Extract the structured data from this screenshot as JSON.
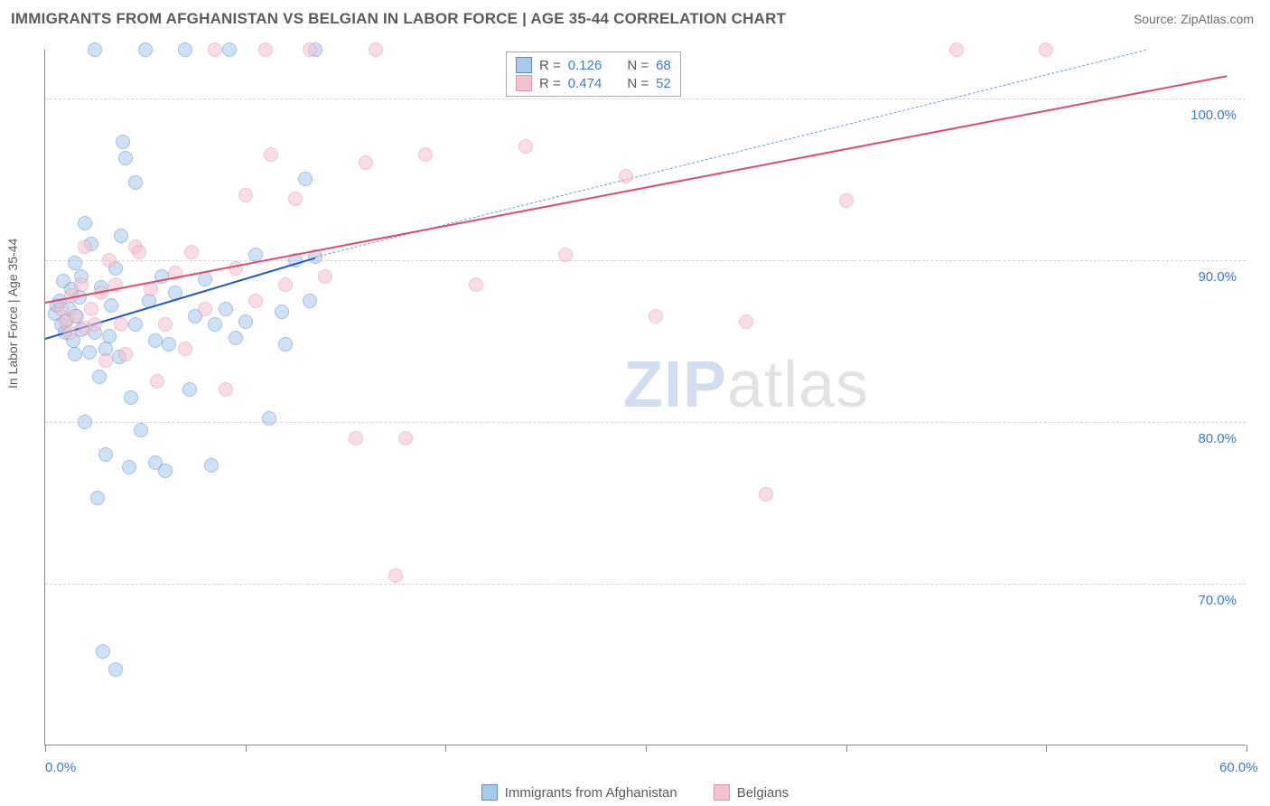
{
  "header": {
    "title": "IMMIGRANTS FROM AFGHANISTAN VS BELGIAN IN LABOR FORCE | AGE 35-44 CORRELATION CHART",
    "source": "Source: ZipAtlas.com"
  },
  "chart": {
    "type": "scatter",
    "ylabel": "In Labor Force | Age 35-44",
    "xlim": [
      0,
      60
    ],
    "ylim": [
      60,
      103
    ],
    "xticks": [
      0,
      10,
      20,
      30,
      40,
      50,
      60
    ],
    "xtick_labels": {
      "0": "0.0%",
      "60": "60.0%"
    },
    "yticks": [
      70,
      80,
      90,
      100
    ],
    "ytick_labels": {
      "70": "70.0%",
      "80": "80.0%",
      "90": "90.0%",
      "100": "100.0%"
    },
    "background_color": "#ffffff",
    "grid_color": "#d5d5d5",
    "axis_color": "#888888",
    "tick_label_color": "#3a7bd5",
    "label_color": "#5a5a5a",
    "marker_radius": 8,
    "marker_opacity": 0.55,
    "series": [
      {
        "id": "afghan",
        "label": "Immigrants from Afghanistan",
        "fill_color": "#a9c9ec",
        "stroke_color": "#5a8fc7",
        "trend_solid_color": "#2457c5",
        "trend_dash_color": "#6a9be0",
        "R": "0.126",
        "N": "68",
        "trend_solid": {
          "x1": 0,
          "y1": 85.2,
          "x2": 13.5,
          "y2": 90.2
        },
        "trend_dash": {
          "x1": 13.5,
          "y1": 90.2,
          "x2": 55,
          "y2": 103
        },
        "points": [
          [
            0.5,
            86.7
          ],
          [
            0.6,
            87.2
          ],
          [
            0.7,
            87.5
          ],
          [
            0.8,
            86.0
          ],
          [
            0.9,
            88.7
          ],
          [
            1.0,
            85.5
          ],
          [
            1.1,
            86.3
          ],
          [
            1.2,
            87.0
          ],
          [
            1.3,
            88.2
          ],
          [
            1.4,
            85.0
          ],
          [
            1.5,
            84.2
          ],
          [
            1.5,
            89.8
          ],
          [
            1.6,
            86.5
          ],
          [
            1.7,
            87.7
          ],
          [
            1.8,
            85.7
          ],
          [
            1.8,
            89.0
          ],
          [
            2.0,
            80.0
          ],
          [
            2.0,
            92.3
          ],
          [
            2.2,
            84.3
          ],
          [
            2.3,
            91.0
          ],
          [
            2.5,
            85.5
          ],
          [
            2.5,
            103.0
          ],
          [
            2.6,
            75.3
          ],
          [
            2.7,
            82.8
          ],
          [
            2.8,
            88.3
          ],
          [
            2.9,
            65.8
          ],
          [
            3.0,
            78.0
          ],
          [
            3.0,
            84.5
          ],
          [
            3.2,
            85.3
          ],
          [
            3.3,
            87.2
          ],
          [
            3.5,
            89.5
          ],
          [
            3.5,
            64.7
          ],
          [
            3.7,
            84.0
          ],
          [
            3.8,
            91.5
          ],
          [
            3.9,
            97.3
          ],
          [
            4.0,
            96.3
          ],
          [
            4.2,
            77.2
          ],
          [
            4.3,
            81.5
          ],
          [
            4.5,
            86.0
          ],
          [
            4.5,
            94.8
          ],
          [
            5.2,
            87.5
          ],
          [
            5.5,
            85.0
          ],
          [
            5.5,
            77.5
          ],
          [
            5.8,
            89.0
          ],
          [
            6.0,
            77.0
          ],
          [
            6.2,
            84.8
          ],
          [
            6.5,
            88.0
          ],
          [
            7.0,
            103.0
          ],
          [
            7.2,
            82.0
          ],
          [
            7.5,
            86.5
          ],
          [
            8.0,
            88.8
          ],
          [
            8.3,
            77.3
          ],
          [
            8.5,
            86.0
          ],
          [
            9.0,
            87.0
          ],
          [
            9.2,
            103.0
          ],
          [
            9.5,
            85.2
          ],
          [
            10.0,
            86.2
          ],
          [
            10.5,
            90.3
          ],
          [
            11.2,
            80.2
          ],
          [
            11.8,
            86.8
          ],
          [
            12.0,
            84.8
          ],
          [
            12.5,
            90.0
          ],
          [
            13.0,
            95.0
          ],
          [
            13.2,
            87.5
          ],
          [
            13.5,
            90.2
          ],
          [
            13.5,
            103.0
          ],
          [
            5.0,
            103.0
          ],
          [
            4.8,
            79.5
          ]
        ]
      },
      {
        "id": "belgian",
        "label": "Belgians",
        "fill_color": "#f4c2ce",
        "stroke_color": "#e394ab",
        "trend_solid_color": "#e34a6f",
        "trend_dash_color": "#e8a0b4",
        "R": "0.474",
        "N": "52",
        "trend_solid": {
          "x1": 0,
          "y1": 87.4,
          "x2": 59,
          "y2": 101.4
        },
        "trend_dash": {
          "x1": 0,
          "y1": 87.4,
          "x2": 59,
          "y2": 101.4
        },
        "points": [
          [
            0.8,
            87.0
          ],
          [
            1.0,
            86.2
          ],
          [
            1.2,
            85.5
          ],
          [
            1.3,
            87.8
          ],
          [
            1.5,
            86.5
          ],
          [
            1.8,
            88.5
          ],
          [
            2.0,
            90.8
          ],
          [
            2.0,
            85.8
          ],
          [
            2.3,
            87.0
          ],
          [
            2.5,
            86.0
          ],
          [
            2.8,
            88.0
          ],
          [
            3.0,
            83.8
          ],
          [
            3.2,
            90.0
          ],
          [
            3.5,
            88.5
          ],
          [
            3.8,
            86.0
          ],
          [
            4.0,
            84.2
          ],
          [
            4.5,
            90.8
          ],
          [
            4.7,
            90.5
          ],
          [
            5.3,
            88.2
          ],
          [
            5.6,
            82.5
          ],
          [
            6.0,
            86.0
          ],
          [
            6.5,
            89.2
          ],
          [
            7.0,
            84.5
          ],
          [
            7.3,
            90.5
          ],
          [
            8.0,
            87.0
          ],
          [
            8.5,
            103.0
          ],
          [
            9.0,
            82.0
          ],
          [
            9.5,
            89.5
          ],
          [
            10.0,
            94.0
          ],
          [
            10.5,
            87.5
          ],
          [
            11.0,
            103.0
          ],
          [
            11.3,
            96.5
          ],
          [
            12.0,
            88.5
          ],
          [
            12.5,
            93.8
          ],
          [
            13.2,
            103.0
          ],
          [
            14.0,
            89.0
          ],
          [
            15.5,
            79.0
          ],
          [
            16.0,
            96.0
          ],
          [
            16.5,
            103.0
          ],
          [
            17.5,
            70.5
          ],
          [
            18.0,
            79.0
          ],
          [
            19.0,
            96.5
          ],
          [
            21.5,
            88.5
          ],
          [
            24.0,
            97.0
          ],
          [
            26.0,
            90.3
          ],
          [
            29.0,
            95.2
          ],
          [
            30.5,
            86.5
          ],
          [
            35.0,
            86.2
          ],
          [
            40.0,
            93.7
          ],
          [
            45.5,
            103.0
          ],
          [
            50.0,
            103.0
          ],
          [
            36.0,
            75.5
          ]
        ]
      }
    ],
    "legend_top": {
      "rows": [
        {
          "swatch_series": "afghan",
          "r_label": "R  =",
          "n_label": "N  ="
        },
        {
          "swatch_series": "belgian",
          "r_label": "R  =",
          "n_label": "N  ="
        }
      ]
    },
    "watermark": {
      "zip": "ZIP",
      "atlas": "atlas"
    }
  }
}
